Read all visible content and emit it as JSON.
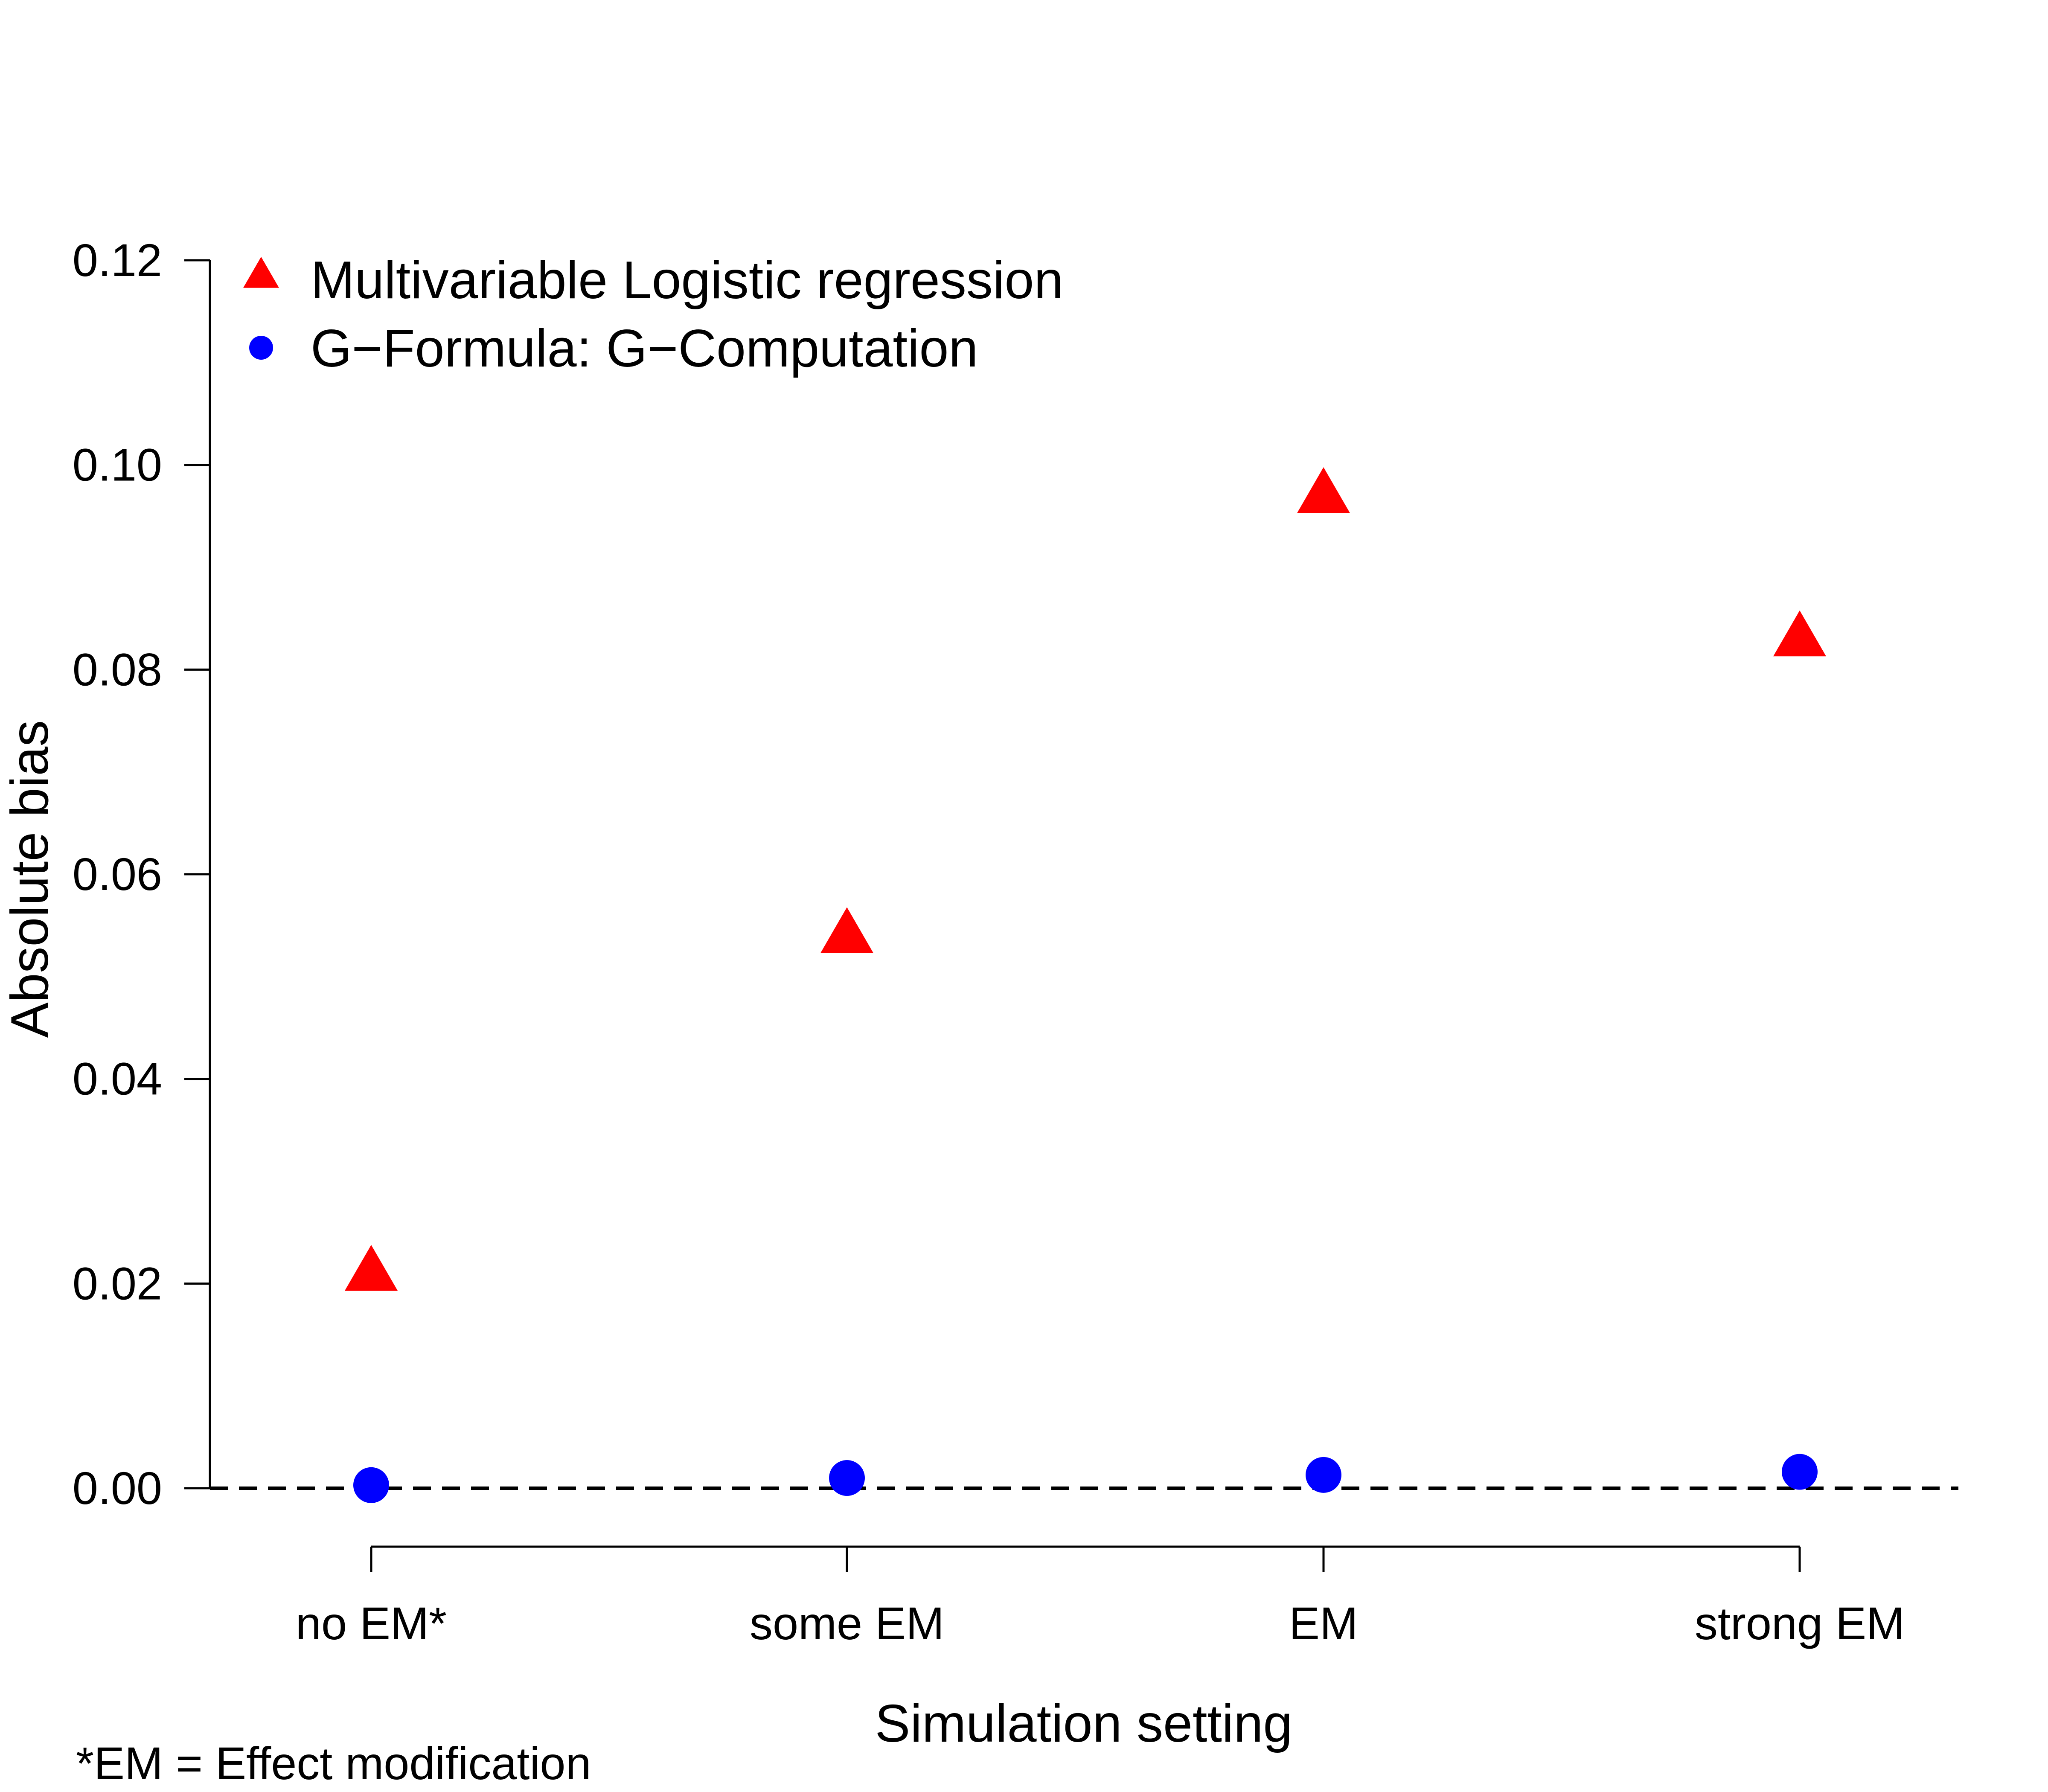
{
  "chart_data": {
    "type": "scatter",
    "categories": [
      "no EM*",
      "some EM",
      "EM",
      "strong EM"
    ],
    "series": [
      {
        "name": "Multivariable Logistic regression",
        "values": [
          0.021,
          0.054,
          0.097,
          0.083
        ],
        "color": "#ff0000",
        "marker": "triangle"
      },
      {
        "name": "G−Formula: G−Computation",
        "values": [
          0.0003,
          0.001,
          0.0013,
          0.0016
        ],
        "color": "#0000ff",
        "marker": "circle"
      }
    ],
    "xlabel": "Simulation setting",
    "ylabel": "Absolute bias",
    "ylim": [
      0,
      0.12
    ],
    "yticks": [
      "0.00",
      "0.02",
      "0.04",
      "0.06",
      "0.08",
      "0.10",
      "0.12"
    ],
    "reference_line": {
      "y": 0,
      "style": "dashed"
    },
    "legend_position": "top-left",
    "grid": false,
    "footnote": "*EM = Effect modification"
  }
}
